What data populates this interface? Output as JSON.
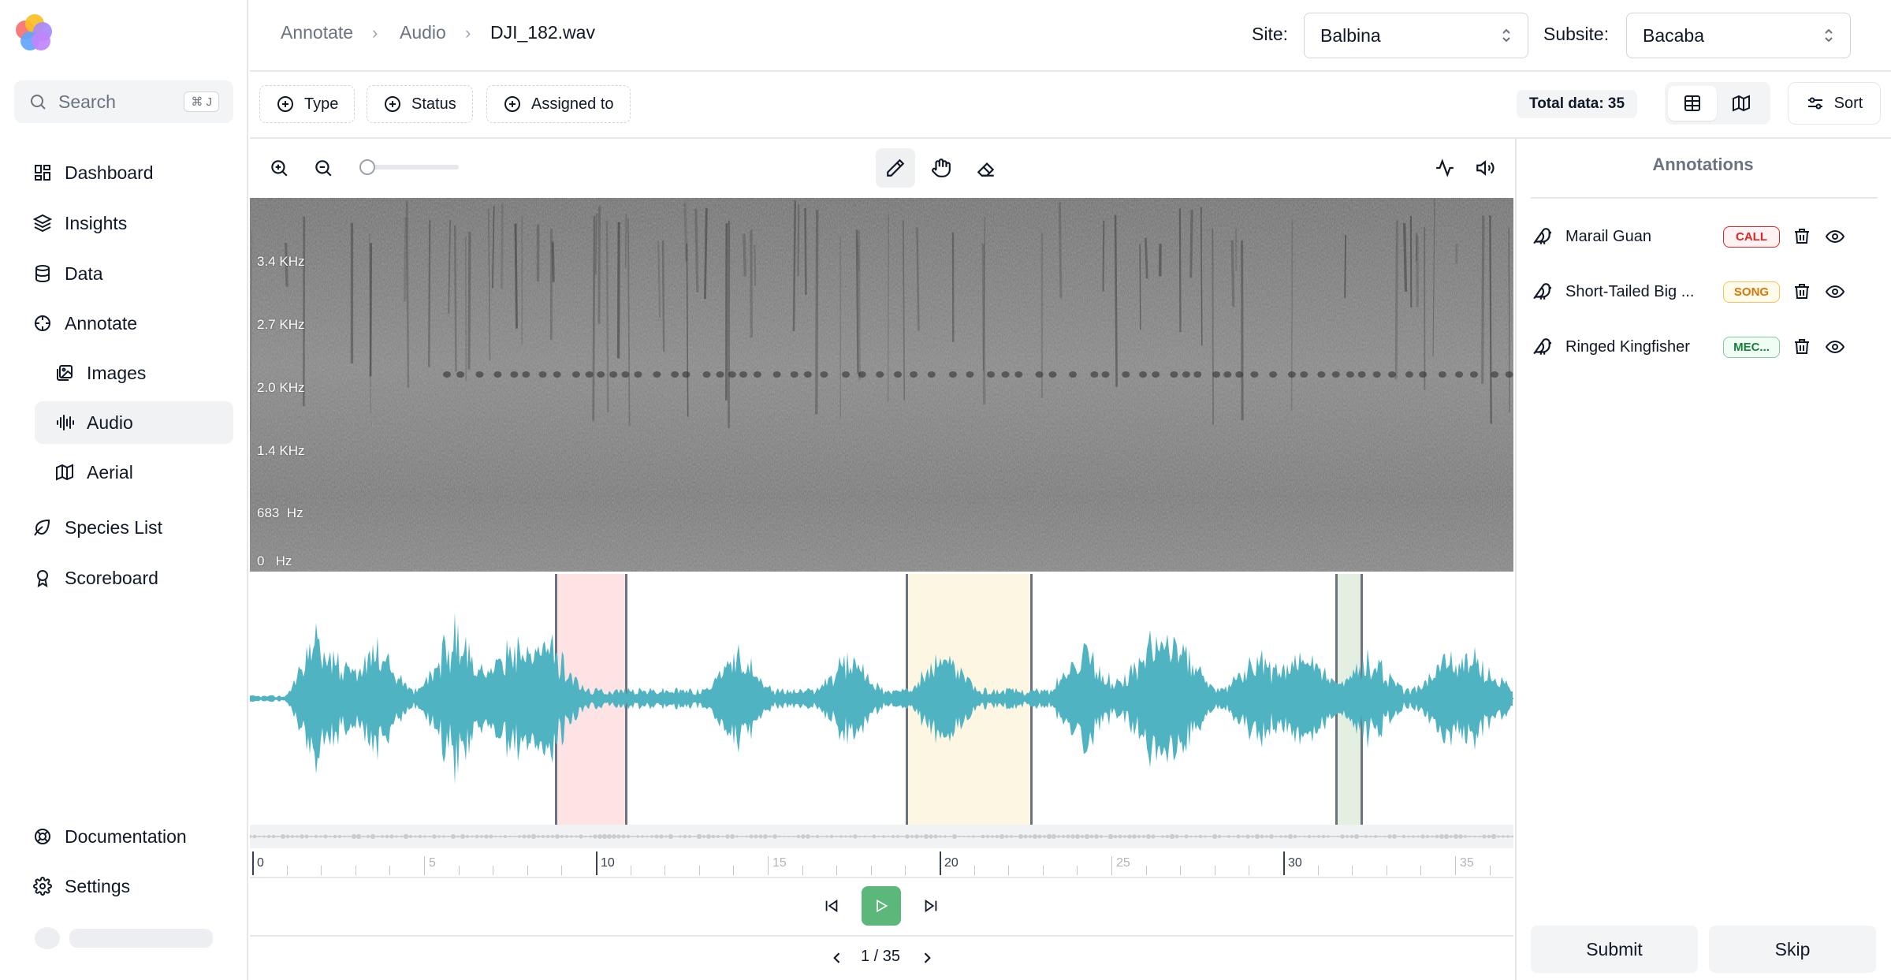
{
  "sidebar": {
    "search": {
      "label": "Search",
      "shortcut": "⌘ J"
    },
    "items": [
      {
        "label": "Dashboard",
        "icon": "dashboard-icon"
      },
      {
        "label": "Insights",
        "icon": "layers-icon"
      },
      {
        "label": "Data",
        "icon": "database-icon"
      },
      {
        "label": "Annotate",
        "icon": "crosshair-icon"
      },
      {
        "label": "Images",
        "icon": "images-icon"
      },
      {
        "label": "Audio",
        "icon": "audio-lines-icon",
        "active": true
      },
      {
        "label": "Aerial",
        "icon": "map-icon"
      },
      {
        "label": "Species List",
        "icon": "leaf-icon"
      },
      {
        "label": "Scoreboard",
        "icon": "award-icon"
      }
    ],
    "footer": [
      {
        "label": "Documentation",
        "icon": "lifebuoy-icon"
      },
      {
        "label": "Settings",
        "icon": "gear-icon"
      }
    ]
  },
  "header": {
    "breadcrumb": [
      "Annotate",
      "Audio",
      "DJI_182.wav"
    ],
    "site_label": "Site:",
    "site_value": "Balbina",
    "subsite_label": "Subsite:",
    "subsite_value": "Bacaba"
  },
  "filters": {
    "chips": [
      "Type",
      "Status",
      "Assigned to"
    ],
    "total": "Total data: 35",
    "sort_label": "Sort"
  },
  "spectrogram": {
    "freq_labels": [
      "3.4 KHz",
      "2.7 KHz",
      "2.0 KHz",
      "1.4 KHz",
      "683  Hz",
      "0   Hz"
    ]
  },
  "timeline": {
    "ticks": [
      "0",
      "5",
      "10",
      "15",
      "20",
      "25",
      "30",
      "35"
    ],
    "duration_seconds": 37,
    "regions": [
      {
        "start": 8.7,
        "end": 10.8,
        "color": "#fde3e3"
      },
      {
        "start": 18.9,
        "end": 22.6,
        "color": "#fdf6e3"
      },
      {
        "start": 31.4,
        "end": 32.2,
        "color": "#e3efe0"
      }
    ]
  },
  "pager": {
    "text": "1 / 35"
  },
  "annotations": {
    "title": "Annotations",
    "items": [
      {
        "name": "Marail Guan",
        "tag": "CALL",
        "color": "#dc2626",
        "bg": "#fef2f2"
      },
      {
        "name": "Short-Tailed Big ...",
        "tag": "SONG",
        "color": "#d97706",
        "bg": "#fffbeb"
      },
      {
        "name": "Ringed Kingfisher",
        "tag": "MEC...",
        "color": "#15803d",
        "bg": "#f0fdf4"
      }
    ]
  },
  "actions": {
    "submit": "Submit",
    "skip": "Skip"
  },
  "colors": {
    "waveform": "#4fb3c2",
    "play": "#5cb87a"
  }
}
